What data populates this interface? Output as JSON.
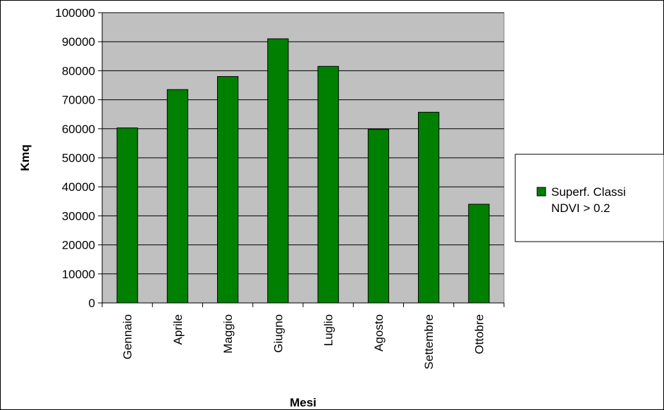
{
  "chart_data": {
    "type": "bar",
    "title": "",
    "xlabel": "Mesi",
    "ylabel": "Kmq",
    "categories": [
      "Gennaio",
      "Aprile",
      "Maggio",
      "Giugno",
      "Luglio",
      "Agosto",
      "Settembre",
      "Ottobre"
    ],
    "series": [
      {
        "name": "Superf. Classi NDVI > 0.2",
        "values": [
          60300,
          73500,
          78000,
          91000,
          81500,
          59800,
          65700,
          34000
        ],
        "color": "#008000"
      }
    ],
    "ylim": [
      0,
      100000
    ],
    "yticks": [
      0,
      10000,
      20000,
      30000,
      40000,
      50000,
      60000,
      70000,
      80000,
      90000,
      100000
    ],
    "grid": true,
    "legend_position": "right",
    "plot_background": "#c0c0c0",
    "legend_lines": [
      "Superf. Classi",
      "NDVI > 0.2"
    ]
  }
}
